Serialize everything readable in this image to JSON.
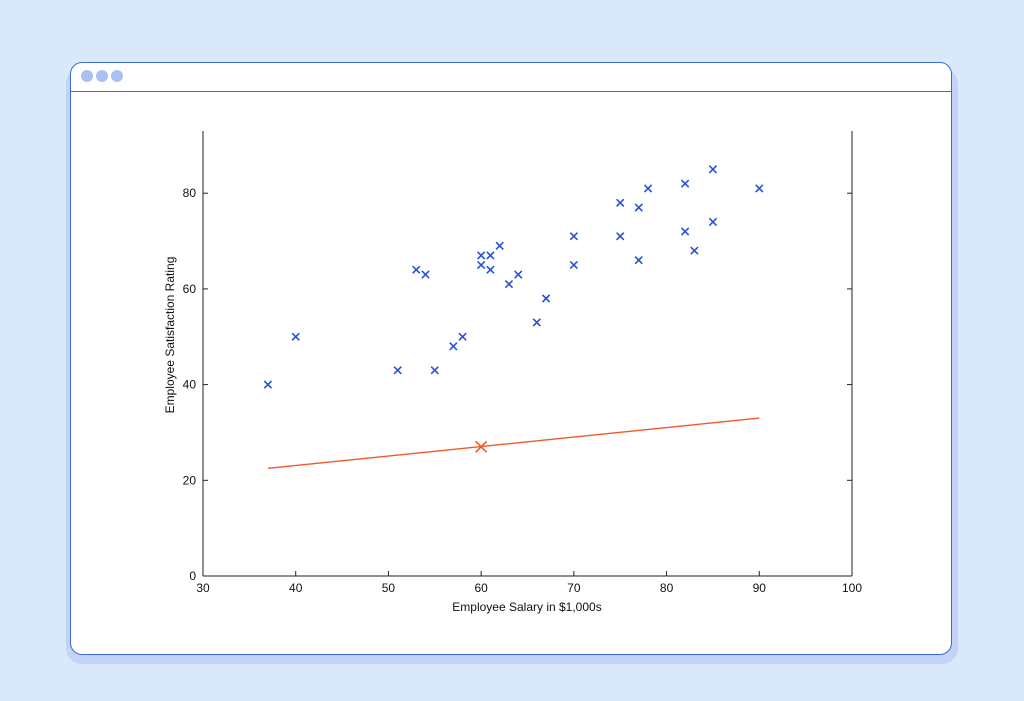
{
  "window": {
    "title_dots": [
      "#a9c0f3",
      "#a9c0f3",
      "#a9c0f3"
    ],
    "border_color": "#3f68d8"
  },
  "chart_data": {
    "type": "scatter",
    "xlabel": "Employee Salary in $1,000s",
    "ylabel": "Employee Satisfaction Rating",
    "xlim": [
      30,
      100
    ],
    "ylim": [
      0,
      93
    ],
    "xticks": [
      30,
      40,
      50,
      60,
      70,
      80,
      90,
      100
    ],
    "yticks": [
      0,
      20,
      40,
      60,
      80
    ],
    "grid": false,
    "points_color": "#2752d8",
    "line_color": "#f05a28",
    "points": [
      {
        "x": 37,
        "y": 40
      },
      {
        "x": 40,
        "y": 50
      },
      {
        "x": 51,
        "y": 43
      },
      {
        "x": 53,
        "y": 64
      },
      {
        "x": 54,
        "y": 63
      },
      {
        "x": 55,
        "y": 43
      },
      {
        "x": 57,
        "y": 48
      },
      {
        "x": 58,
        "y": 50
      },
      {
        "x": 60,
        "y": 67
      },
      {
        "x": 60,
        "y": 65
      },
      {
        "x": 61,
        "y": 67
      },
      {
        "x": 61,
        "y": 64
      },
      {
        "x": 62,
        "y": 69
      },
      {
        "x": 63,
        "y": 61
      },
      {
        "x": 64,
        "y": 63
      },
      {
        "x": 66,
        "y": 53
      },
      {
        "x": 67,
        "y": 58
      },
      {
        "x": 70,
        "y": 71
      },
      {
        "x": 70,
        "y": 65
      },
      {
        "x": 75,
        "y": 78
      },
      {
        "x": 75,
        "y": 71
      },
      {
        "x": 77,
        "y": 77
      },
      {
        "x": 77,
        "y": 66
      },
      {
        "x": 78,
        "y": 81
      },
      {
        "x": 82,
        "y": 82
      },
      {
        "x": 82,
        "y": 72
      },
      {
        "x": 83,
        "y": 68
      },
      {
        "x": 85,
        "y": 85
      },
      {
        "x": 85,
        "y": 74
      },
      {
        "x": 90,
        "y": 81
      }
    ],
    "line": {
      "x": [
        37,
        90
      ],
      "y": [
        22.5,
        33
      ]
    },
    "highlight_point": {
      "x": 60,
      "y": 27
    }
  }
}
